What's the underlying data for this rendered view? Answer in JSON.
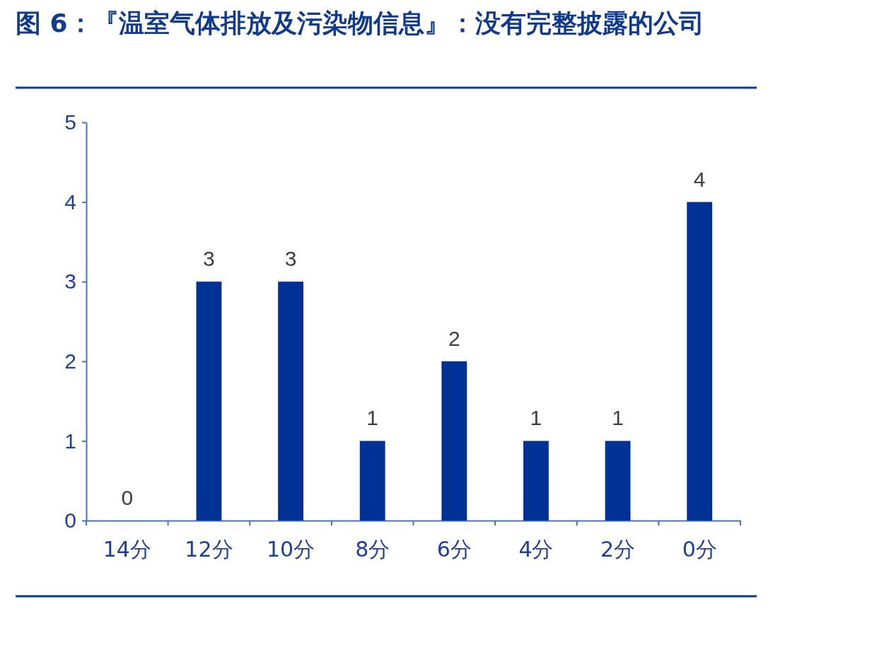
{
  "chart_data": {
    "type": "bar",
    "title": "图 6：『温室气体排放及污染物信息』：没有完整披露的公司",
    "categories": [
      "14分",
      "12分",
      "10分",
      "8分",
      "6分",
      "4分",
      "2分",
      "0分"
    ],
    "values": [
      0,
      3,
      3,
      1,
      2,
      1,
      1,
      4
    ],
    "color": "#003296",
    "ylim": [
      0,
      5
    ],
    "yticks": [
      0,
      1,
      2,
      3,
      4,
      5
    ],
    "grid": false,
    "data_labels": true
  }
}
